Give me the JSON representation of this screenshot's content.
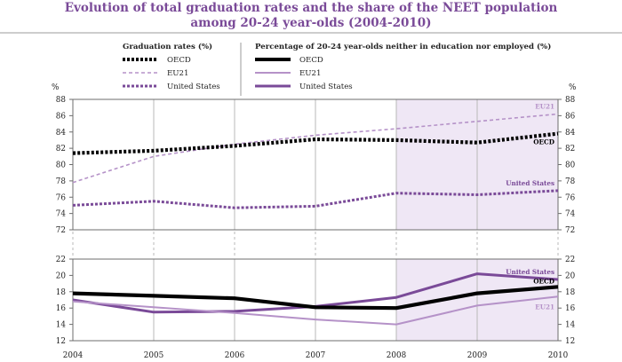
{
  "chart_data": {
    "type": "line",
    "title": "Evolution of total graduation rates and the share of the NEET population",
    "subtitle": "among 20-24 year-olds (2004-2010)",
    "x": [
      "2004",
      "2005",
      "2006",
      "2007",
      "2008",
      "2009",
      "2010"
    ],
    "legend": {
      "graduation_heading": "Graduation rates (%)",
      "neet_heading": "Percentage of 20-24 year-olds neither in education nor employed (%)",
      "graduation_entries": [
        "OECD",
        "EU21",
        "United States"
      ],
      "neet_entries": [
        "OECD",
        "EU21",
        "United States"
      ]
    },
    "colors": {
      "oecd": "#000000",
      "eu21": "#b592c8",
      "united_states": "#7a4a98",
      "highlight": "#efe7f5",
      "title": "#7a4a98"
    },
    "highlight_range": [
      "2008",
      "2010"
    ],
    "panels": [
      {
        "name": "graduation",
        "unit_left": "%",
        "unit_right": "%",
        "ylim": [
          72,
          88
        ],
        "yticks": [
          "72",
          "74",
          "76",
          "78",
          "80",
          "82",
          "84",
          "86",
          "88"
        ],
        "line_style": "dotted",
        "series": [
          {
            "key": "eu21",
            "name": "EU21",
            "label": "EU21",
            "values": [
              77.8,
              81.0,
              82.5,
              83.6,
              84.4,
              85.3,
              86.2
            ]
          },
          {
            "key": "oecd",
            "name": "OECD",
            "label": "OECD",
            "values": [
              81.4,
              81.7,
              82.3,
              83.1,
              83.0,
              82.7,
              83.8
            ]
          },
          {
            "key": "united_states",
            "name": "United States",
            "label": "United States",
            "values": [
              75.0,
              75.5,
              74.7,
              74.9,
              76.5,
              76.3,
              76.8
            ]
          }
        ]
      },
      {
        "name": "neet",
        "unit_left": "",
        "unit_right": "",
        "ylim": [
          12,
          22
        ],
        "yticks": [
          "12",
          "14",
          "16",
          "18",
          "20",
          "22"
        ],
        "line_style": "solid",
        "series": [
          {
            "key": "united_states",
            "name": "United States",
            "label": "United States",
            "values": [
              17.0,
              15.5,
              15.6,
              16.2,
              17.3,
              20.2,
              19.5
            ]
          },
          {
            "key": "oecd",
            "name": "OECD",
            "label": "OECD",
            "values": [
              17.8,
              17.5,
              17.2,
              16.1,
              16.0,
              17.8,
              18.6
            ]
          },
          {
            "key": "eu21",
            "name": "EU21",
            "label": "EU21",
            "values": [
              16.8,
              16.1,
              15.4,
              14.6,
              14.0,
              16.3,
              17.4
            ]
          }
        ]
      }
    ]
  }
}
